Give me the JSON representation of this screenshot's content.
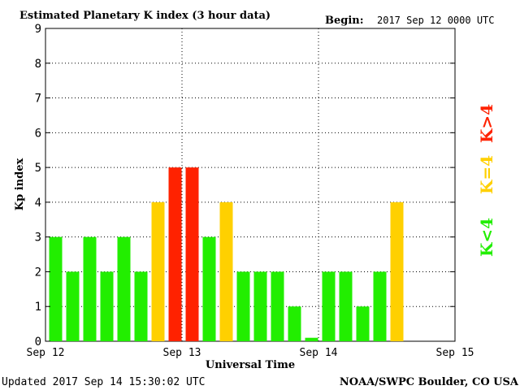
{
  "header": {
    "title": "Estimated Planetary K index (3 hour data)",
    "begin_label": "Begin:",
    "begin_value": "2017 Sep 12 0000 UTC"
  },
  "footer": {
    "updated": "Updated 2017 Sep 14 15:30:02 UTC",
    "source": "NOAA/SWPC Boulder, CO USA"
  },
  "legend": {
    "high": "K>4",
    "equal": "K=4",
    "low": "K<4"
  },
  "colors": {
    "low": "#22ee00",
    "equal": "#ffd000",
    "high": "#ff2200",
    "background": "#ffffff",
    "axis": "#000000"
  },
  "chart_data": {
    "type": "bar",
    "title": "Estimated Planetary K index (3 hour data)",
    "xlabel": "Universal Time",
    "ylabel": "Kp index",
    "ylim": [
      0,
      9
    ],
    "yticks": [
      "0",
      "1",
      "2",
      "3",
      "4",
      "5",
      "6",
      "7",
      "8",
      "9"
    ],
    "xticks": [
      "Sep 12",
      "Sep 13",
      "Sep 14",
      "Sep 15"
    ],
    "bins_per_day": 8,
    "grid": true,
    "values": [
      3,
      2,
      3,
      2,
      3,
      2,
      4,
      5,
      5,
      3,
      4,
      2,
      2,
      2,
      1,
      0.1,
      2,
      2,
      1,
      2,
      4
    ]
  }
}
